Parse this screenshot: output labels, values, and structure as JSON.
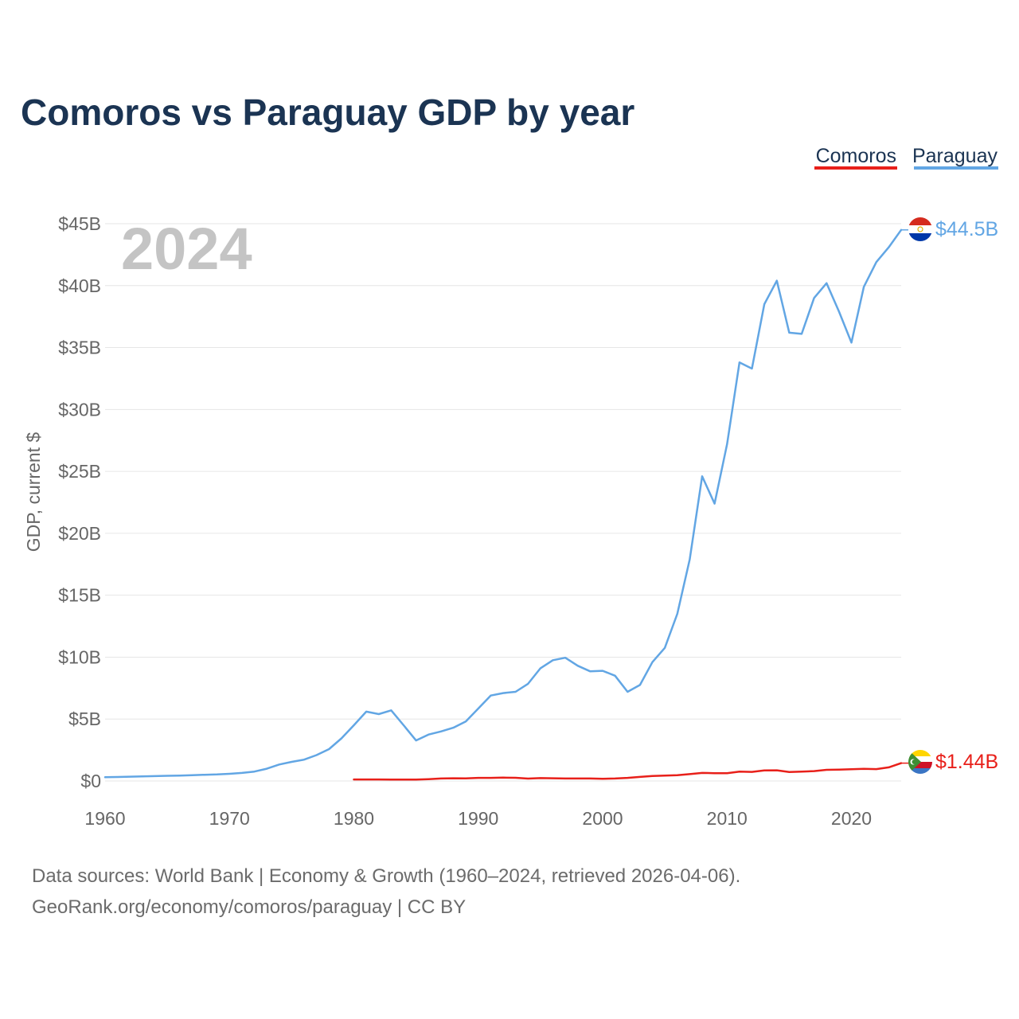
{
  "chart_data": {
    "type": "line",
    "title": "Comoros vs Paraguay GDP by year",
    "ylabel": "GDP, current $",
    "xlabel": "",
    "xlim": [
      1960,
      2024
    ],
    "ylim": [
      0,
      45
    ],
    "y_unit": "billion USD",
    "yticks": [
      {
        "value": 0,
        "label": "$0"
      },
      {
        "value": 5,
        "label": "$5B"
      },
      {
        "value": 10,
        "label": "$10B"
      },
      {
        "value": 15,
        "label": "$15B"
      },
      {
        "value": 20,
        "label": "$20B"
      },
      {
        "value": 25,
        "label": "$25B"
      },
      {
        "value": 30,
        "label": "$30B"
      },
      {
        "value": 35,
        "label": "$35B"
      },
      {
        "value": 40,
        "label": "$40B"
      },
      {
        "value": 45,
        "label": "$45B"
      }
    ],
    "xticks": [
      {
        "value": 1960,
        "label": "1960"
      },
      {
        "value": 1970,
        "label": "1970"
      },
      {
        "value": 1980,
        "label": "1980"
      },
      {
        "value": 1990,
        "label": "1990"
      },
      {
        "value": 2000,
        "label": "2000"
      },
      {
        "value": 2010,
        "label": "2010"
      },
      {
        "value": 2020,
        "label": "2020"
      }
    ],
    "current_year": "2024",
    "legend": [
      "Comoros",
      "Paraguay"
    ],
    "series": [
      {
        "name": "Comoros",
        "color": "#e8201a",
        "end_label": "$1.44B",
        "x": [
          1980,
          1981,
          1982,
          1983,
          1984,
          1985,
          1986,
          1987,
          1988,
          1989,
          1990,
          1991,
          1992,
          1993,
          1994,
          1995,
          1996,
          1997,
          1998,
          1999,
          2000,
          2001,
          2002,
          2003,
          2004,
          2005,
          2006,
          2007,
          2008,
          2009,
          2010,
          2011,
          2012,
          2013,
          2014,
          2015,
          2016,
          2017,
          2018,
          2019,
          2020,
          2021,
          2022,
          2023,
          2024
        ],
        "values": [
          0.12,
          0.12,
          0.12,
          0.11,
          0.11,
          0.11,
          0.15,
          0.2,
          0.22,
          0.21,
          0.25,
          0.25,
          0.27,
          0.26,
          0.19,
          0.23,
          0.22,
          0.2,
          0.2,
          0.2,
          0.18,
          0.2,
          0.25,
          0.33,
          0.4,
          0.44,
          0.47,
          0.55,
          0.65,
          0.63,
          0.63,
          0.75,
          0.73,
          0.85,
          0.86,
          0.72,
          0.75,
          0.8,
          0.9,
          0.92,
          0.95,
          0.98,
          0.96,
          1.1,
          1.44
        ]
      },
      {
        "name": "Paraguay",
        "color": "#62a6e4",
        "end_label": "$44.5B",
        "x": [
          1960,
          1961,
          1962,
          1963,
          1964,
          1965,
          1966,
          1967,
          1968,
          1969,
          1970,
          1971,
          1972,
          1973,
          1974,
          1975,
          1976,
          1977,
          1978,
          1979,
          1980,
          1981,
          1982,
          1983,
          1984,
          1985,
          1986,
          1987,
          1988,
          1989,
          1990,
          1991,
          1992,
          1993,
          1994,
          1995,
          1996,
          1997,
          1998,
          1999,
          2000,
          2001,
          2002,
          2003,
          2004,
          2005,
          2006,
          2007,
          2008,
          2009,
          2010,
          2011,
          2012,
          2013,
          2014,
          2015,
          2016,
          2017,
          2018,
          2019,
          2020,
          2021,
          2022,
          2023,
          2024
        ],
        "values": [
          0.3,
          0.32,
          0.35,
          0.37,
          0.39,
          0.42,
          0.44,
          0.47,
          0.5,
          0.53,
          0.58,
          0.65,
          0.76,
          0.99,
          1.33,
          1.54,
          1.72,
          2.09,
          2.57,
          3.44,
          4.5,
          5.6,
          5.4,
          5.7,
          4.5,
          3.27,
          3.75,
          4.0,
          4.3,
          4.8,
          5.85,
          6.9,
          7.1,
          7.2,
          7.85,
          9.1,
          9.75,
          9.95,
          9.3,
          8.85,
          8.9,
          8.5,
          7.2,
          7.75,
          9.6,
          10.75,
          13.5,
          17.9,
          24.6,
          22.4,
          27.2,
          33.8,
          33.3,
          38.5,
          40.4,
          36.2,
          36.1,
          39.0,
          40.2,
          37.9,
          35.4,
          39.9,
          41.9,
          43.1,
          44.5
        ]
      }
    ]
  },
  "source": {
    "line1": "Data sources: World Bank | Economy & Growth (1960–2024, retrieved 2026-04-06).",
    "line2": "GeoRank.org/economy/comoros/paraguay | CC BY"
  }
}
